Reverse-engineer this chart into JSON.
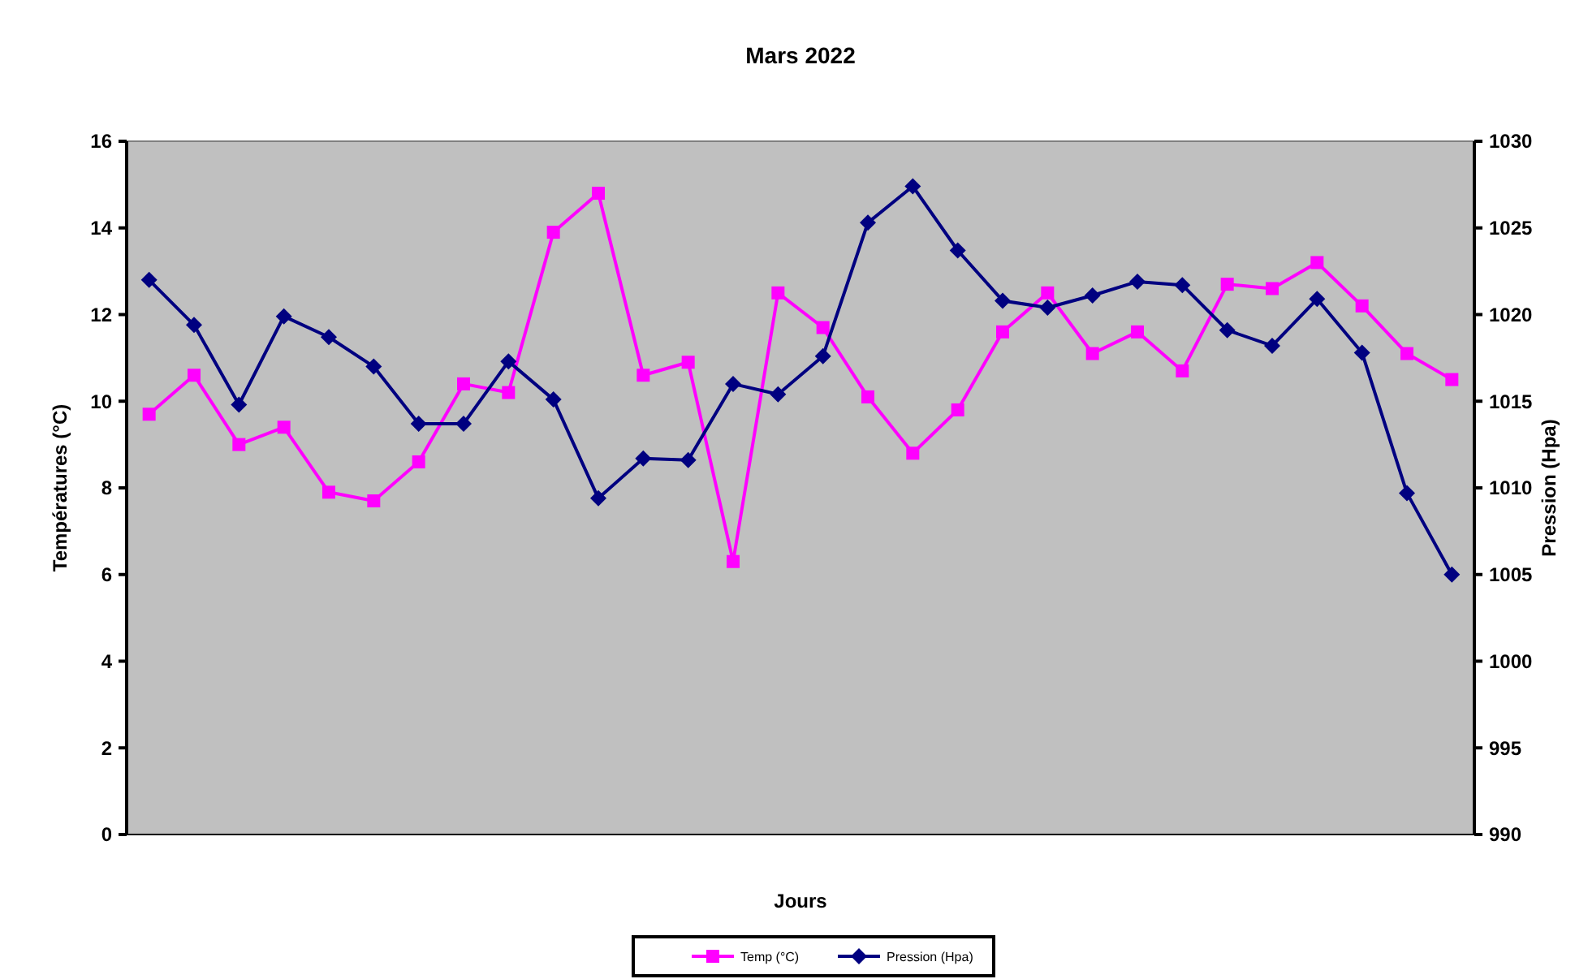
{
  "chart_data": {
    "type": "line",
    "title": "Mars 2022",
    "xlabel": "Jours",
    "ylabel": "Températures (°C)",
    "y2label": "Pression (Hpa)",
    "categories": [
      null,
      null,
      null,
      null,
      null,
      null,
      null,
      null,
      null,
      null,
      null,
      null,
      null,
      null,
      null,
      null,
      null,
      null,
      null,
      null,
      null,
      null,
      null,
      null,
      null,
      null,
      null,
      null,
      null,
      null
    ],
    "ylim": [
      0,
      16
    ],
    "yticks": [
      0,
      2,
      4,
      6,
      8,
      10,
      12,
      14,
      16
    ],
    "y2lim": [
      990,
      1030
    ],
    "y2ticks": [
      990,
      995,
      1000,
      1005,
      1010,
      1015,
      1020,
      1025,
      1030
    ],
    "grid": false,
    "legend": "bottom",
    "series": [
      {
        "name": "Temp (°C)",
        "color": "#ff00ff",
        "marker": "square",
        "values": [
          9.7,
          10.6,
          9.0,
          9.4,
          7.9,
          7.7,
          8.6,
          10.4,
          10.2,
          13.9,
          14.8,
          10.6,
          10.9,
          6.3,
          12.5,
          11.7,
          10.1,
          8.8,
          9.8,
          11.6,
          12.5,
          11.1,
          11.6,
          10.7,
          12.7,
          12.6,
          13.2,
          12.2,
          11.1,
          10.5
        ]
      },
      {
        "name": "Pression (Hpa)",
        "color": "#000080",
        "marker": "diamond",
        "axis": "y2",
        "values": [
          1022.0,
          1019.4,
          1014.8,
          1019.9,
          1018.7,
          1017.0,
          1013.7,
          1013.7,
          1017.3,
          1015.1,
          1009.4,
          1011.7,
          1011.6,
          1016.0,
          1015.4,
          1017.6,
          1025.3,
          1027.4,
          1023.7,
          1020.8,
          1020.4,
          1021.1,
          1021.9,
          1021.7,
          1019.1,
          1018.2,
          1020.9,
          1017.8,
          1009.7,
          1005.0
        ]
      }
    ]
  }
}
